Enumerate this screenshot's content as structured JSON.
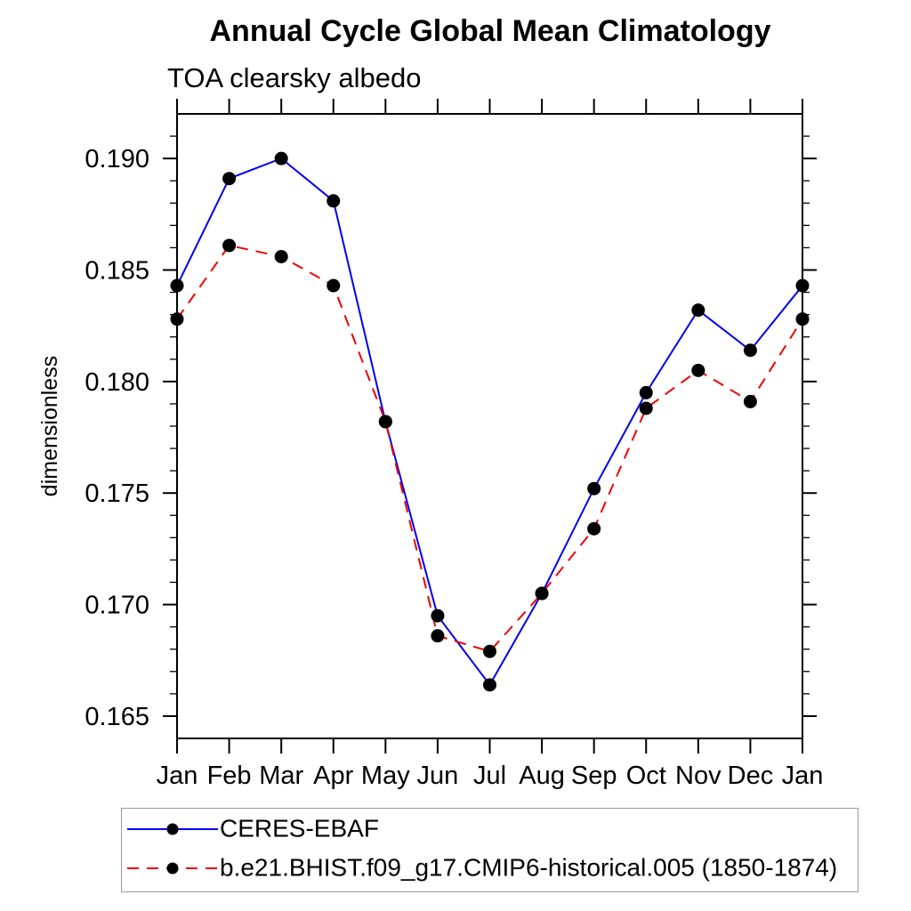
{
  "header": {
    "title": "Annual Cycle Global Mean Climatology",
    "subtitle": "TOA clearsky albedo"
  },
  "chart_data": {
    "type": "line",
    "title": "Annual Cycle Global Mean Climatology",
    "subtitle": "TOA clearsky albedo",
    "xlabel": "",
    "ylabel": "dimensionless",
    "categories": [
      "Jan",
      "Feb",
      "Mar",
      "Apr",
      "May",
      "Jun",
      "Jul",
      "Aug",
      "Sep",
      "Oct",
      "Nov",
      "Dec",
      "Jan"
    ],
    "ylim": [
      0.164,
      0.192
    ],
    "ytick_major": [
      0.165,
      0.17,
      0.175,
      0.18,
      0.185,
      0.19
    ],
    "ytick_labels": [
      "0.165",
      "0.170",
      "0.175",
      "0.180",
      "0.185",
      "0.190"
    ],
    "ytick_minor_step": 0.001,
    "grid": false,
    "legend_position": "bottom-left-box",
    "marker_color": "#000000",
    "series": [
      {
        "name": "CERES-EBAF",
        "color": "#0000f0",
        "style": "solid",
        "marker": "black-dot",
        "values": [
          0.1843,
          0.1891,
          0.19,
          0.1881,
          0.1782,
          0.1695,
          0.1664,
          0.1705,
          0.1752,
          0.1795,
          0.1832,
          0.1814,
          0.1843
        ]
      },
      {
        "name": "b.e21.BHIST.f09_g17.CMIP6-historical.005 (1850-1874)",
        "color": "#f00000",
        "style": "dashed",
        "marker": "black-dot",
        "values": [
          0.1828,
          0.1861,
          0.1856,
          0.1843,
          0.1782,
          0.1686,
          0.1679,
          0.1705,
          0.1734,
          0.1788,
          0.1805,
          0.1791,
          0.1828
        ]
      }
    ]
  }
}
